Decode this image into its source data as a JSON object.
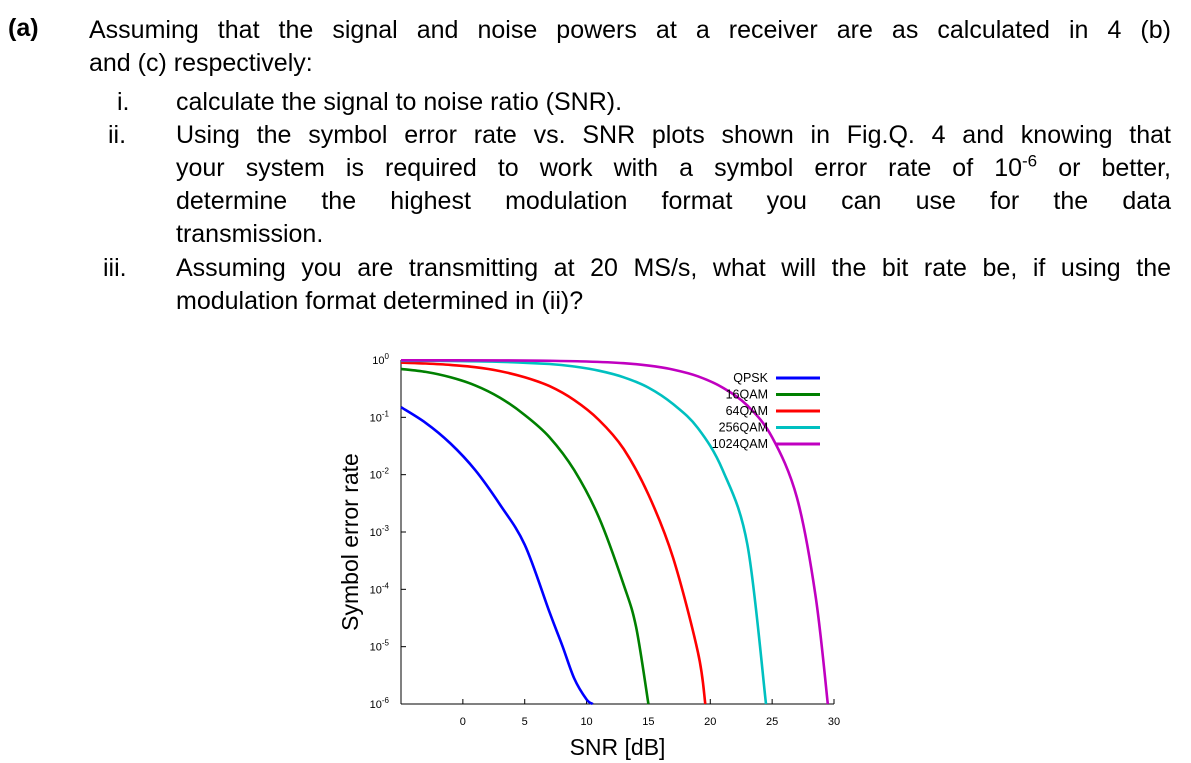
{
  "question": {
    "label": "(a)",
    "intro_line1": "Assuming that the signal and noise powers at a receiver are as calculated in 4 (b)",
    "intro_line2": "and (c) respectively:",
    "items": [
      {
        "num": "i.",
        "lines": [
          "calculate the signal to noise ratio (SNR)."
        ]
      },
      {
        "num": "ii.",
        "lines": [
          "Using the symbol error rate vs. SNR plots shown in Fig.Q. 4 and knowing that",
          "your system is required to work with a symbol error rate of 10",
          "determine the highest modulation format you can use for the data",
          "transmission."
        ],
        "sup": "-6",
        "after_sup": " or better,"
      },
      {
        "num": "iii.",
        "lines": [
          "Assuming you are transmitting at 20 MS/s, what will the bit rate be, if using the",
          "modulation format determined in (ii)?"
        ]
      }
    ]
  },
  "chart_data": {
    "type": "line",
    "xlabel": "SNR [dB]",
    "ylabel": "Symbol error rate",
    "xlim": [
      -5,
      30
    ],
    "x_ticks": [
      "0",
      "5",
      "10",
      "15",
      "20",
      "25",
      "30"
    ],
    "x_tick_values": [
      0,
      5,
      10,
      15,
      20,
      25,
      30
    ],
    "ylim": [
      1e-06,
      1
    ],
    "yscale": "log",
    "y_ticks": [
      {
        "base": "10",
        "exp": "0"
      },
      {
        "base": "10",
        "exp": "-1"
      },
      {
        "base": "10",
        "exp": "-2"
      },
      {
        "base": "10",
        "exp": "-3"
      },
      {
        "base": "10",
        "exp": "-4"
      },
      {
        "base": "10",
        "exp": "-5"
      },
      {
        "base": "10",
        "exp": "-6"
      }
    ],
    "grid": false,
    "legend_position": "top-right",
    "series": [
      {
        "name": "QPSK",
        "color": "#0000ff",
        "x": [
          -5,
          -3,
          -1,
          1,
          3,
          5,
          7,
          8,
          9,
          10,
          10.5
        ],
        "y": [
          0.15,
          0.08,
          0.035,
          0.012,
          0.003,
          0.0006,
          4e-05,
          1.1e-05,
          2.8e-06,
          1.2e-06,
          1e-06
        ]
      },
      {
        "name": "16QAM",
        "color": "#008000",
        "x": [
          -5,
          -3,
          -1,
          1,
          3,
          5,
          7,
          9,
          11,
          13,
          14,
          15
        ],
        "y": [
          0.7,
          0.62,
          0.5,
          0.36,
          0.22,
          0.11,
          0.045,
          0.012,
          0.0018,
          0.00012,
          2.2e-05,
          1e-06
        ]
      },
      {
        "name": "64QAM",
        "color": "#ff0000",
        "x": [
          -5,
          -3,
          -1,
          1,
          3,
          5,
          7,
          9,
          11,
          13,
          15,
          17,
          19,
          19.6
        ],
        "y": [
          0.9,
          0.87,
          0.82,
          0.75,
          0.64,
          0.5,
          0.35,
          0.2,
          0.09,
          0.028,
          0.0045,
          0.00035,
          8e-06,
          1e-06
        ]
      },
      {
        "name": "256QAM",
        "color": "#00c0c0",
        "x": [
          -5,
          -1,
          3,
          7,
          9,
          11,
          13,
          15,
          17,
          19,
          21,
          23,
          24.5
        ],
        "y": [
          0.97,
          0.96,
          0.93,
          0.85,
          0.77,
          0.65,
          0.5,
          0.33,
          0.17,
          0.065,
          0.012,
          0.0006,
          1e-06
        ]
      },
      {
        "name": "1024QAM",
        "color": "#c000c0",
        "x": [
          -5,
          3,
          7,
          10,
          13,
          15,
          17,
          19,
          21,
          23,
          25,
          27,
          28.5,
          29.5
        ],
        "y": [
          0.99,
          0.985,
          0.97,
          0.94,
          0.88,
          0.8,
          0.68,
          0.52,
          0.33,
          0.16,
          0.045,
          0.004,
          8e-05,
          1e-06
        ]
      }
    ]
  }
}
